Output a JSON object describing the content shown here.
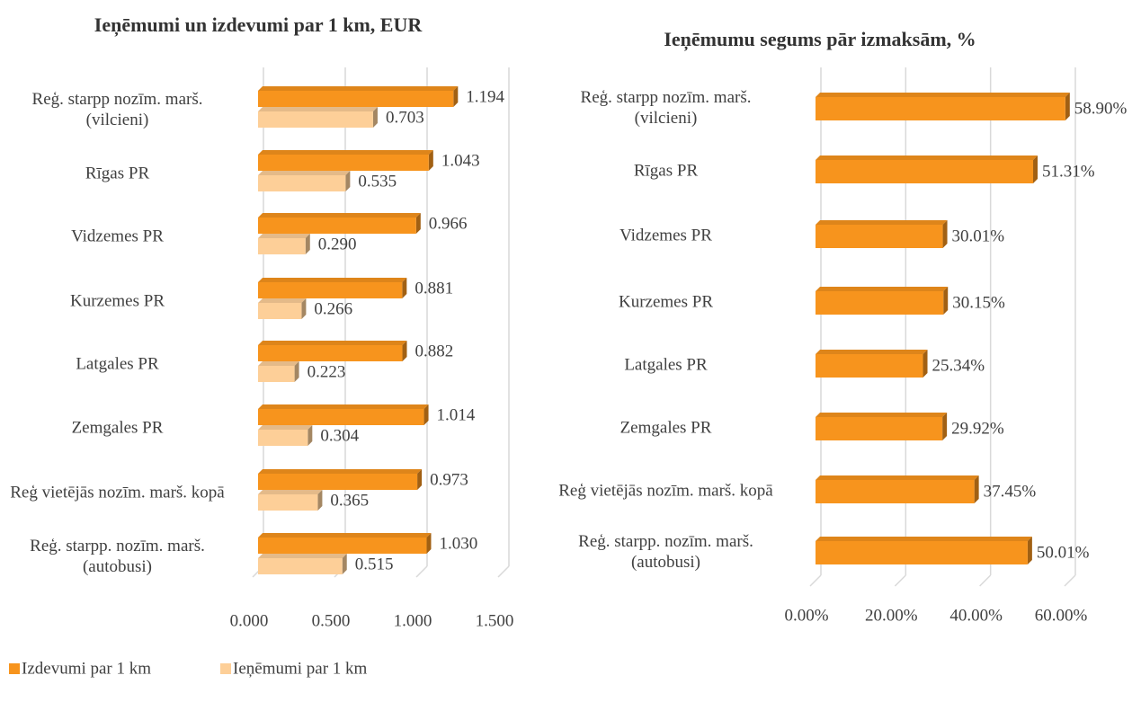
{
  "chart_data": [
    {
      "type": "bar",
      "orientation": "horizontal",
      "title": "Ieņēmumi un izdevumi par 1 km, EUR",
      "categories": [
        "Reģ. starpp nozīm. marš. (vilcieni)",
        "Rīgas PR",
        "Vidzemes PR",
        "Kurzemes PR",
        "Latgales PR",
        "Zemgales PR",
        "Reģ vietējās nozīm. marš. kopā",
        "Reģ. starpp. nozīm. marš. (autobusi)"
      ],
      "series": [
        {
          "name": "Izdevumi par 1 km",
          "color": "#f7941d",
          "values": [
            1.194,
            1.043,
            0.966,
            0.881,
            0.882,
            1.014,
            0.973,
            1.03
          ],
          "value_labels": [
            "1.194",
            "1.043",
            "0.966",
            "0.881",
            "0.882",
            "1.014",
            "0.973",
            "1.030"
          ]
        },
        {
          "name": "Ieņēmumi par 1 km",
          "color": "#fdcf98",
          "values": [
            0.703,
            0.535,
            0.29,
            0.266,
            0.223,
            0.304,
            0.365,
            0.515
          ],
          "value_labels": [
            "0.703",
            "0.535",
            "0.290",
            "0.266",
            "0.223",
            "0.304",
            "0.365",
            "0.515"
          ]
        }
      ],
      "xlim": [
        0,
        1.5
      ],
      "xticks": [
        {
          "value": 0,
          "label": "0.000"
        },
        {
          "value": 0.5,
          "label": "0.500"
        },
        {
          "value": 1,
          "label": "1.000"
        },
        {
          "value": 1.5,
          "label": "1.500"
        }
      ],
      "grid": true,
      "legend": "bottom"
    },
    {
      "type": "bar",
      "orientation": "horizontal",
      "title": "Ieņēmumu segums pār izmaksām, %",
      "categories": [
        "Reģ. starpp nozīm. marš. (vilcieni)",
        "Rīgas PR",
        "Vidzemes PR",
        "Kurzemes PR",
        "Latgales PR",
        "Zemgales PR",
        "Reģ vietējās nozīm. marš. kopā",
        "Reģ. starpp. nozīm. marš. (autobusi)"
      ],
      "values": [
        58.9,
        51.31,
        30.01,
        30.15,
        25.34,
        29.92,
        37.45,
        50.01
      ],
      "value_labels": [
        "58.90%",
        "51.31%",
        "30.01%",
        "30.15%",
        "25.34%",
        "29.92%",
        "37.45%",
        "50.01%"
      ],
      "color": "#f7941d",
      "xlim": [
        0,
        60
      ],
      "xticks": [
        {
          "value": 0,
          "label": "0.00%"
        },
        {
          "value": 20,
          "label": "20.00%"
        },
        {
          "value": 40,
          "label": "40.00%"
        },
        {
          "value": 60,
          "label": "60.00%"
        }
      ],
      "grid": true
    }
  ]
}
